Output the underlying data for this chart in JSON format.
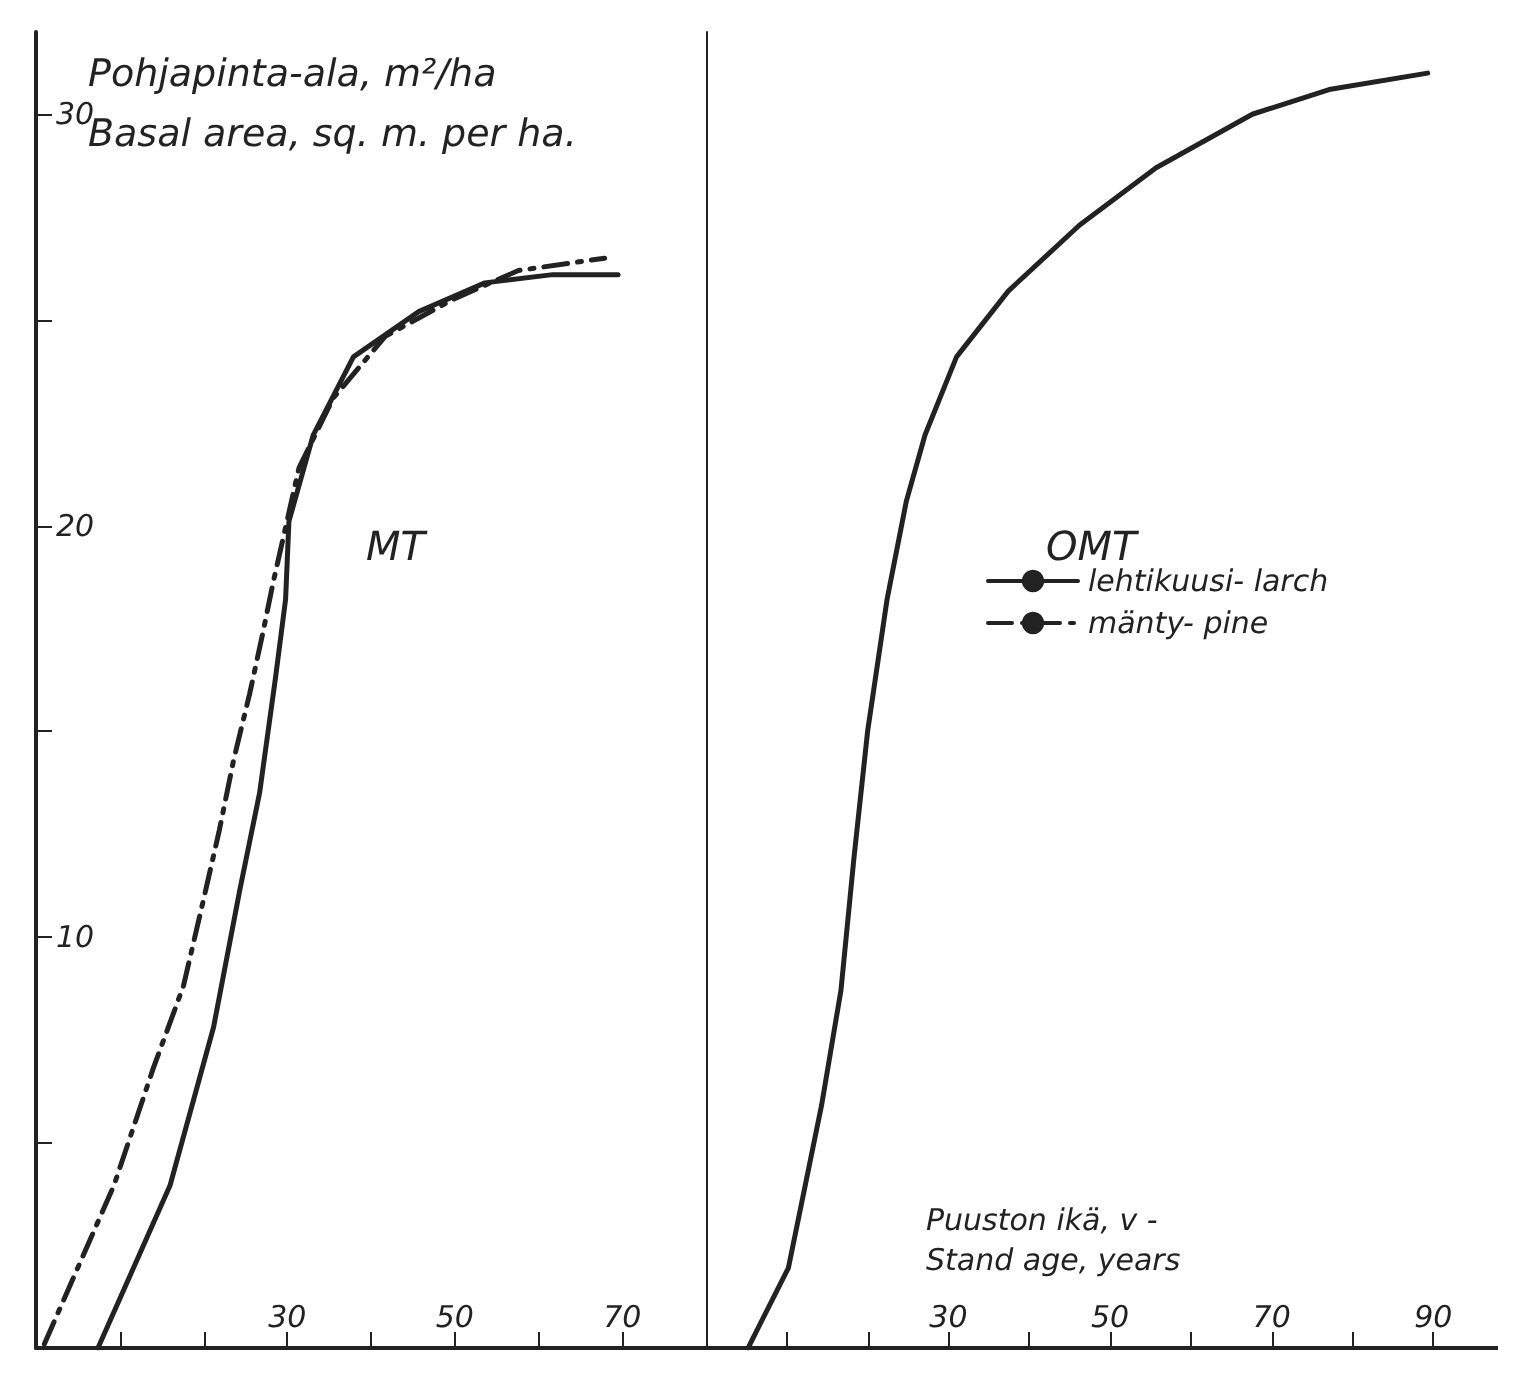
{
  "chart_data": [
    {
      "type": "line",
      "ylabel": "Pohjapinta-ala, m²/ha\nBasal area, sq. m. per ha.",
      "annotations": [
        "MT"
      ],
      "xlim": [
        0,
        80
      ],
      "xticks": [
        {
          "value": 10,
          "label": null
        },
        {
          "value": 20,
          "label": null
        },
        30,
        {
          "value": 40,
          "label": null
        },
        50,
        {
          "value": 60,
          "label": null
        },
        70,
        {
          "value": 80,
          "label": null
        }
      ],
      "ylim": [
        0,
        32
      ],
      "yticks": [
        {
          "value": 5,
          "label": null
        },
        10,
        {
          "value": 15,
          "label": null
        },
        20,
        {
          "value": 25,
          "label": null
        },
        30
      ],
      "grid": false,
      "legend": "right",
      "marker": "none",
      "series": [
        {
          "name": "lehtikuusi- larch",
          "color": "#222222",
          "line_style": "solid",
          "x": [
            7.4,
            16,
            21.2,
            24.3,
            26.7,
            28.6,
            29.8,
            30.2,
            33.1,
            37.9,
            45.7,
            53.6,
            61.7,
            69.5
          ],
          "values": [
            0,
            3.95,
            7.8,
            11.1,
            13.5,
            16.3,
            18.2,
            20.1,
            22.2,
            24.1,
            25.2,
            25.9,
            26.1,
            26.1
          ]
        },
        {
          "name": "mänty- pine",
          "color": "#222222",
          "line_style": "dashed",
          "x": [
            1,
            9.3,
            14,
            17.6,
            20,
            21.9,
            23.6,
            25.5,
            27.1,
            28.3,
            31.4,
            35.5,
            41.7,
            49.8,
            57.6,
            67.9
          ],
          "values": [
            0.1,
            3.95,
            6.8,
            8.8,
            10.9,
            12.6,
            14.3,
            15.9,
            17.4,
            18.6,
            21.4,
            23.1,
            24.6,
            25.5,
            26.2,
            26.5
          ]
        }
      ]
    },
    {
      "type": "line",
      "xlabel": "Puuston ikä, v -\nStand age, years",
      "annotations": [
        "OMT"
      ],
      "xlim": [
        0,
        98
      ],
      "xticks": [
        {
          "value": 10,
          "label": null
        },
        {
          "value": 20,
          "label": null
        },
        30,
        {
          "value": 40,
          "label": null
        },
        50,
        {
          "value": 60,
          "label": null
        },
        70,
        {
          "value": 80,
          "label": null
        },
        90
      ],
      "ylim": [
        0,
        32
      ],
      "yticks": [
        {
          "value": 5,
          "label": null
        },
        {
          "value": 10,
          "label": null
        },
        {
          "value": 15,
          "label": null
        },
        {
          "value": 20,
          "label": null
        },
        {
          "value": 25,
          "label": null
        },
        {
          "value": 30,
          "label": null
        }
      ],
      "tick_labels": "x",
      "grid": false,
      "marker": "none",
      "series": [
        {
          "color": "#222222",
          "line_style": "solid",
          "x": [
            5.2,
            10.2,
            14.3,
            16.7,
            18.3,
            20,
            22.4,
            24.8,
            27.1,
            31,
            37.4,
            46.2,
            55.7,
            67.6,
            77.1,
            89.3
          ],
          "values": [
            0,
            1.95,
            5.9,
            8.7,
            11.9,
            15,
            18.2,
            20.6,
            22.2,
            24.1,
            25.7,
            27.3,
            28.7,
            30,
            30.6,
            31
          ]
        }
      ]
    }
  ]
}
